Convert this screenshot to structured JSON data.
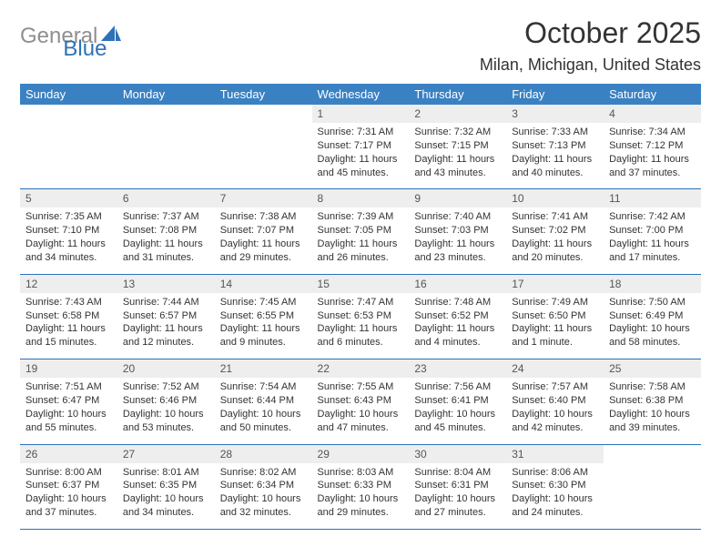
{
  "logo": {
    "text1": "General",
    "text2": "Blue"
  },
  "header": {
    "month_title": "October 2025",
    "location": "Milan, Michigan, United States"
  },
  "columns": [
    "Sunday",
    "Monday",
    "Tuesday",
    "Wednesday",
    "Thursday",
    "Friday",
    "Saturday"
  ],
  "style": {
    "header_bg": "#3a81c3",
    "header_fg": "#ffffff",
    "daynum_bg": "#eeeeee",
    "rule_color": "#2d72b7",
    "text_color": "#333333",
    "logo_gray": "#8f8f8f",
    "logo_blue": "#2d72b7",
    "month_fontsize": 32,
    "location_fontsize": 18,
    "header_fontsize": 13,
    "body_fontsize": 11
  },
  "weeks": [
    {
      "nums": [
        "",
        "",
        "",
        "1",
        "2",
        "3",
        "4"
      ],
      "cells": [
        "",
        "",
        "",
        "Sunrise: 7:31 AM\nSunset: 7:17 PM\nDaylight: 11 hours and 45 minutes.",
        "Sunrise: 7:32 AM\nSunset: 7:15 PM\nDaylight: 11 hours and 43 minutes.",
        "Sunrise: 7:33 AM\nSunset: 7:13 PM\nDaylight: 11 hours and 40 minutes.",
        "Sunrise: 7:34 AM\nSunset: 7:12 PM\nDaylight: 11 hours and 37 minutes."
      ]
    },
    {
      "nums": [
        "5",
        "6",
        "7",
        "8",
        "9",
        "10",
        "11"
      ],
      "cells": [
        "Sunrise: 7:35 AM\nSunset: 7:10 PM\nDaylight: 11 hours and 34 minutes.",
        "Sunrise: 7:37 AM\nSunset: 7:08 PM\nDaylight: 11 hours and 31 minutes.",
        "Sunrise: 7:38 AM\nSunset: 7:07 PM\nDaylight: 11 hours and 29 minutes.",
        "Sunrise: 7:39 AM\nSunset: 7:05 PM\nDaylight: 11 hours and 26 minutes.",
        "Sunrise: 7:40 AM\nSunset: 7:03 PM\nDaylight: 11 hours and 23 minutes.",
        "Sunrise: 7:41 AM\nSunset: 7:02 PM\nDaylight: 11 hours and 20 minutes.",
        "Sunrise: 7:42 AM\nSunset: 7:00 PM\nDaylight: 11 hours and 17 minutes."
      ]
    },
    {
      "nums": [
        "12",
        "13",
        "14",
        "15",
        "16",
        "17",
        "18"
      ],
      "cells": [
        "Sunrise: 7:43 AM\nSunset: 6:58 PM\nDaylight: 11 hours and 15 minutes.",
        "Sunrise: 7:44 AM\nSunset: 6:57 PM\nDaylight: 11 hours and 12 minutes.",
        "Sunrise: 7:45 AM\nSunset: 6:55 PM\nDaylight: 11 hours and 9 minutes.",
        "Sunrise: 7:47 AM\nSunset: 6:53 PM\nDaylight: 11 hours and 6 minutes.",
        "Sunrise: 7:48 AM\nSunset: 6:52 PM\nDaylight: 11 hours and 4 minutes.",
        "Sunrise: 7:49 AM\nSunset: 6:50 PM\nDaylight: 11 hours and 1 minute.",
        "Sunrise: 7:50 AM\nSunset: 6:49 PM\nDaylight: 10 hours and 58 minutes."
      ]
    },
    {
      "nums": [
        "19",
        "20",
        "21",
        "22",
        "23",
        "24",
        "25"
      ],
      "cells": [
        "Sunrise: 7:51 AM\nSunset: 6:47 PM\nDaylight: 10 hours and 55 minutes.",
        "Sunrise: 7:52 AM\nSunset: 6:46 PM\nDaylight: 10 hours and 53 minutes.",
        "Sunrise: 7:54 AM\nSunset: 6:44 PM\nDaylight: 10 hours and 50 minutes.",
        "Sunrise: 7:55 AM\nSunset: 6:43 PM\nDaylight: 10 hours and 47 minutes.",
        "Sunrise: 7:56 AM\nSunset: 6:41 PM\nDaylight: 10 hours and 45 minutes.",
        "Sunrise: 7:57 AM\nSunset: 6:40 PM\nDaylight: 10 hours and 42 minutes.",
        "Sunrise: 7:58 AM\nSunset: 6:38 PM\nDaylight: 10 hours and 39 minutes."
      ]
    },
    {
      "nums": [
        "26",
        "27",
        "28",
        "29",
        "30",
        "31",
        ""
      ],
      "cells": [
        "Sunrise: 8:00 AM\nSunset: 6:37 PM\nDaylight: 10 hours and 37 minutes.",
        "Sunrise: 8:01 AM\nSunset: 6:35 PM\nDaylight: 10 hours and 34 minutes.",
        "Sunrise: 8:02 AM\nSunset: 6:34 PM\nDaylight: 10 hours and 32 minutes.",
        "Sunrise: 8:03 AM\nSunset: 6:33 PM\nDaylight: 10 hours and 29 minutes.",
        "Sunrise: 8:04 AM\nSunset: 6:31 PM\nDaylight: 10 hours and 27 minutes.",
        "Sunrise: 8:06 AM\nSunset: 6:30 PM\nDaylight: 10 hours and 24 minutes.",
        ""
      ]
    }
  ]
}
